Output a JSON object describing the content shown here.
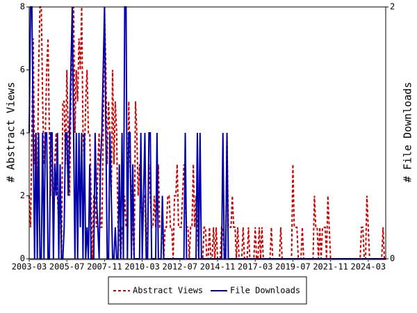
{
  "chart_data": {
    "type": "line",
    "ylabel": "# Abstract Views",
    "y2label": "# File Downloads",
    "ylim": [
      0,
      8
    ],
    "yticks": [
      0,
      2,
      4,
      6,
      8
    ],
    "y2lim": [
      0,
      2
    ],
    "y2ticks": [
      0,
      2
    ],
    "legend": "bottom",
    "categories": [
      "2003-03",
      null,
      null,
      null,
      null,
      null,
      null,
      null,
      null,
      null,
      null,
      null,
      null,
      null,
      null,
      null,
      null,
      null,
      null,
      null,
      null,
      null,
      null,
      null,
      null,
      null,
      null,
      null,
      "2005-07",
      null,
      null,
      null,
      null,
      null,
      null,
      null,
      null,
      null,
      null,
      null,
      null,
      null,
      null,
      null,
      null,
      null,
      null,
      null,
      null,
      null,
      null,
      null,
      null,
      null,
      null,
      null,
      "2007-11",
      null,
      null,
      null,
      null,
      null,
      null,
      null,
      null,
      null,
      null,
      null,
      null,
      null,
      null,
      null,
      null,
      null,
      null,
      null,
      null,
      null,
      null,
      null,
      null,
      null,
      null,
      null,
      "2010-03",
      null,
      null,
      null,
      null,
      null,
      null,
      null,
      null,
      null,
      null,
      null,
      null,
      null,
      null,
      null,
      null,
      null,
      null,
      null,
      null,
      null,
      null,
      null,
      null,
      null,
      null,
      null,
      "2012-07",
      null,
      null,
      null,
      null,
      null,
      null,
      null,
      null,
      null,
      null,
      null,
      null,
      null,
      null,
      null,
      null,
      null,
      null,
      null,
      null,
      null,
      null,
      null,
      null,
      null,
      null,
      null,
      "2014-11",
      null,
      null,
      null,
      null,
      null,
      null,
      null,
      null,
      null,
      null,
      null,
      null,
      null,
      null,
      null,
      null,
      null,
      null,
      null,
      null,
      null,
      null,
      null,
      null,
      null,
      null,
      null,
      "2017-03",
      null,
      null,
      null,
      null,
      null,
      null,
      null,
      null,
      null,
      null,
      null,
      null,
      null,
      null,
      null,
      null,
      null,
      null,
      null,
      null,
      null,
      null,
      null,
      null,
      null,
      null,
      null,
      "2019-07",
      null,
      null,
      null,
      null,
      null,
      null,
      null,
      null,
      null,
      null,
      null,
      null,
      null,
      null,
      null,
      null,
      null,
      null,
      null,
      null,
      null,
      null,
      null,
      null,
      null,
      null,
      null,
      "2021-11",
      null,
      null,
      null,
      null,
      null,
      null,
      null,
      null,
      null,
      null,
      null,
      null,
      null,
      null,
      null,
      null,
      null,
      null,
      null,
      null,
      null,
      null,
      null,
      null,
      null,
      null,
      null,
      "2024-03",
      null,
      null,
      null,
      null,
      null,
      null,
      null,
      null,
      null,
      null,
      null,
      null,
      null
    ],
    "series": [
      {
        "name": "Abstract Views",
        "color": "#cc0000",
        "linestyle": "dashed",
        "axis": "y",
        "values": [
          2,
          1,
          4,
          7,
          3,
          4,
          2,
          6,
          8,
          8,
          5,
          3,
          4,
          6,
          7,
          4,
          2,
          4,
          1,
          3,
          4,
          2,
          1,
          2,
          0,
          5,
          5,
          3,
          6,
          4,
          2,
          5,
          7,
          8,
          4,
          6,
          5,
          7,
          6,
          8,
          4,
          3,
          5,
          6,
          4,
          4,
          2,
          0,
          2,
          2,
          1,
          3,
          4,
          1,
          1,
          4,
          8,
          6,
          3,
          5,
          4,
          2,
          6,
          3,
          5,
          4,
          1,
          1,
          0,
          1,
          1,
          2,
          1,
          1,
          5,
          3,
          2,
          1,
          0,
          5,
          4,
          2,
          3,
          2,
          1,
          2,
          2,
          0,
          1,
          3,
          2,
          1,
          1,
          2,
          1,
          2,
          3,
          1,
          1,
          1,
          0,
          1,
          1,
          2,
          2,
          1,
          1,
          0,
          2,
          2,
          3,
          1,
          1,
          1,
          2,
          3,
          2,
          1,
          1,
          0,
          1,
          1,
          3,
          1,
          2,
          1,
          0,
          0,
          0,
          0,
          1,
          1,
          0,
          0,
          1,
          0,
          0,
          1,
          0,
          1,
          0,
          0,
          0,
          1,
          1,
          0,
          0,
          4,
          1,
          1,
          1,
          2,
          1,
          1,
          0,
          1,
          0,
          0,
          0,
          1,
          0,
          0,
          0,
          1,
          0,
          0,
          0,
          0,
          1,
          0,
          0,
          1,
          0,
          1,
          0,
          0,
          0,
          0,
          0,
          0,
          1,
          0,
          0,
          0,
          0,
          0,
          0,
          1,
          0,
          0,
          0,
          0,
          0,
          0,
          0,
          0,
          3,
          1,
          1,
          1,
          0,
          0,
          0,
          1,
          0,
          0,
          0,
          0,
          0,
          0,
          0,
          0,
          2,
          1,
          1,
          0,
          1,
          0,
          1,
          1,
          1,
          0,
          2,
          1,
          0,
          0,
          0,
          0,
          0,
          0,
          0,
          0,
          0,
          0,
          0,
          0,
          0,
          0,
          0,
          0,
          0,
          0,
          0,
          0,
          0,
          0,
          0,
          1,
          1,
          0,
          0,
          2,
          1,
          0,
          0,
          0,
          0,
          0,
          0,
          0,
          0,
          0,
          0,
          1,
          0,
          0
        ]
      },
      {
        "name": "File Downloads",
        "color": "#0000aa",
        "linestyle": "solid",
        "axis": "y2",
        "values": [
          1,
          2,
          2,
          1,
          0,
          1,
          0,
          1,
          0,
          0,
          1,
          0,
          1,
          1,
          0,
          0,
          1,
          1,
          0,
          0.75,
          0.5,
          1,
          0,
          0.75,
          0,
          0,
          0.25,
          1,
          1,
          0.5,
          1,
          1.5,
          2,
          1,
          0,
          1,
          0,
          1,
          0.25,
          1,
          0,
          1,
          0,
          0.25,
          0,
          0.75,
          0,
          0,
          0,
          1,
          0.5,
          0.25,
          0,
          0.75,
          1,
          1.5,
          2,
          1,
          0,
          0,
          1,
          0.5,
          0,
          0,
          0.25,
          0,
          0,
          0.75,
          0,
          1,
          0,
          2,
          2,
          0,
          1,
          1,
          0,
          0.75,
          0,
          0,
          0,
          0,
          0,
          1,
          0,
          0.5,
          1,
          0,
          0,
          1,
          1,
          0,
          0,
          0,
          0,
          1,
          0,
          0,
          0,
          0.5,
          0,
          0,
          0,
          0,
          0,
          0,
          0,
          0,
          0,
          0,
          0,
          0,
          0,
          0,
          0,
          0,
          1,
          0,
          0,
          0,
          0,
          0,
          0,
          0,
          0,
          1,
          0,
          1,
          0,
          0,
          0,
          0,
          0,
          0,
          0,
          0,
          0,
          0,
          0,
          0,
          0,
          0,
          0,
          0,
          1,
          0,
          0,
          1,
          0,
          0,
          0,
          0,
          0,
          0,
          0,
          0,
          0,
          0,
          0,
          0,
          0,
          0,
          0,
          0,
          0,
          0,
          0,
          0,
          0,
          0,
          0,
          0,
          0,
          0,
          0,
          0,
          0,
          0,
          0,
          0,
          0,
          0,
          0,
          0,
          0,
          0,
          0,
          0,
          0,
          0,
          0,
          0,
          0,
          0,
          0,
          0,
          0,
          0,
          0,
          0,
          0,
          0,
          0,
          0,
          0,
          0,
          0,
          0,
          0,
          0,
          0,
          0,
          0,
          0,
          0,
          0,
          0,
          0,
          0,
          0,
          0,
          0,
          0,
          0,
          0,
          0,
          0,
          0,
          0,
          0,
          0,
          0,
          0,
          0,
          0,
          0,
          0,
          0,
          0,
          0,
          0,
          0,
          0,
          0,
          0,
          0,
          0,
          0,
          0,
          0,
          0,
          0,
          0,
          0,
          0,
          0,
          0,
          0,
          0,
          0,
          0,
          0,
          0,
          0,
          0,
          0
        ]
      }
    ]
  }
}
